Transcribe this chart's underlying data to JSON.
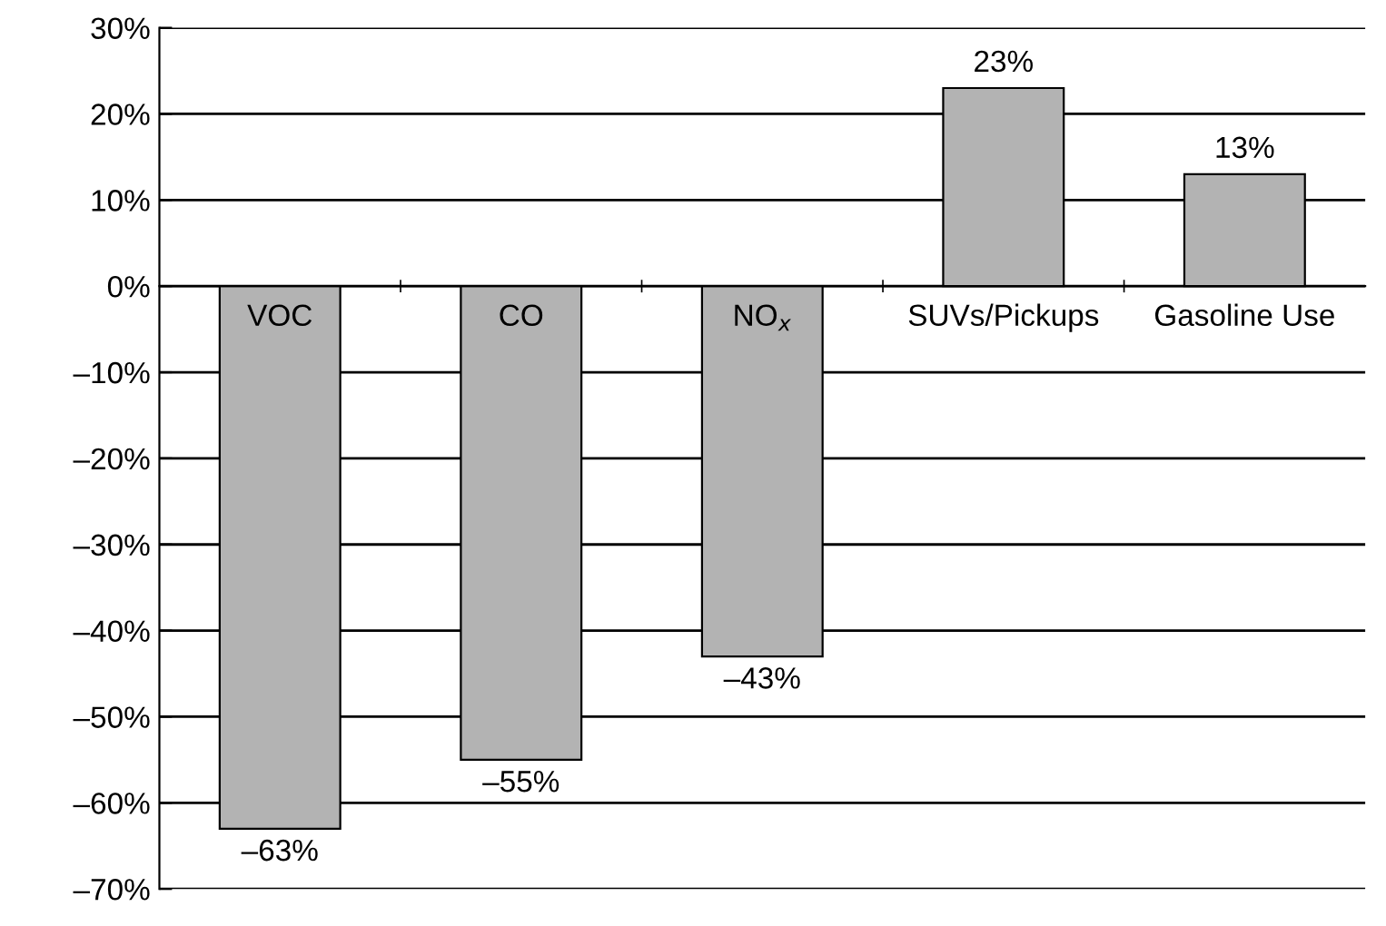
{
  "chart_data": {
    "type": "bar",
    "categories": [
      "VOC",
      "CO",
      "NO$_{x}$",
      "SUVs/Pickups",
      "Gasoline Use"
    ],
    "values": [
      -63,
      -55,
      -43,
      23,
      13
    ],
    "value_labels": [
      "–63%",
      "–55%",
      "–43%",
      "23%",
      "13%"
    ],
    "color": "#b3b3b3",
    "ylim": [
      -70,
      30
    ],
    "yticks": [
      {
        "value": -70,
        "label": "–70%"
      },
      {
        "value": -60,
        "label": "–60%"
      },
      {
        "value": -50,
        "label": "–50%"
      },
      {
        "value": -40,
        "label": "–40%"
      },
      {
        "value": -30,
        "label": "–30%"
      },
      {
        "value": -20,
        "label": "–20%"
      },
      {
        "value": -10,
        "label": "–10%"
      },
      {
        "value": 0,
        "label": "0%"
      },
      {
        "value": 10,
        "label": "10%"
      },
      {
        "value": 20,
        "label": "20%"
      },
      {
        "value": 30,
        "label": "30%"
      }
    ],
    "grid": "y"
  }
}
